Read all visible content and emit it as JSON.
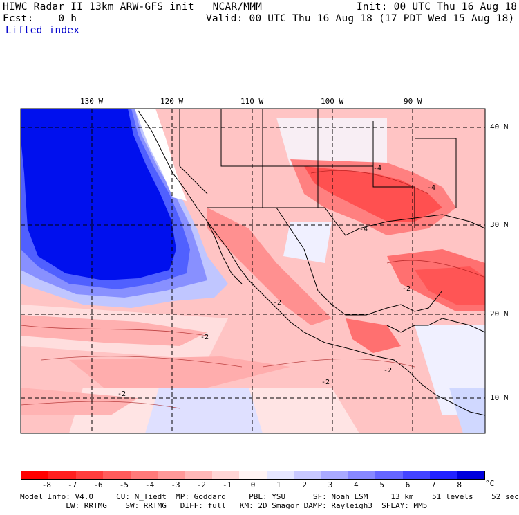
{
  "header": {
    "line1_left": "HIWC Radar II 13km ARW-GFS init   NCAR/MMM",
    "line1_right": "Init: 00 UTC Thu 16 Aug 18",
    "line2_left": "Fcst:    0 h",
    "line2_right": "Valid: 00 UTC Thu 16 Aug 18 (17 PDT Wed 15 Aug 18)",
    "field": "Lifted index"
  },
  "map": {
    "lon_labels": [
      "130 W",
      "120 W",
      "110 W",
      "100 W",
      "90 W"
    ],
    "lat_labels": [
      "40 N",
      "30 N",
      "20 N",
      "10 N"
    ],
    "contour_labels": [
      "-4",
      "-4",
      "-4",
      "-2",
      "-2",
      "-2",
      "-2",
      "-2",
      "-2"
    ],
    "colors": {
      "ocean_high": "#0000ee",
      "neutral": "#ffffff",
      "unstable": "#ff4d4d"
    }
  },
  "colorbar": {
    "ticks": [
      "-8",
      "-7",
      "-6",
      "-5",
      "-4",
      "-3",
      "-2",
      "-1",
      "0",
      "1",
      "2",
      "3",
      "4",
      "5",
      "6",
      "7",
      "8"
    ],
    "unit": "°C",
    "colors": [
      "#ff0000",
      "#ff1f1f",
      "#ff3d3d",
      "#ff5c5c",
      "#ff7a7a",
      "#ff9999",
      "#ffb8b8",
      "#ffd6d6",
      "#fff3f3",
      "#e6e6ff",
      "#c8c8ff",
      "#aaaaff",
      "#8888ff",
      "#6666ff",
      "#4444ff",
      "#2222ff",
      "#0000dd"
    ]
  },
  "footer": {
    "line1": "Model Info: V4.0     CU: N_Tiedt  MP: Goddard     PBL: YSU      SF: Noah LSM     13 km    51 levels    52 sec",
    "line2": "          LW: RRTMG    SW: RRTMG   DIFF: full   KM: 2D Smagor DAMP: Rayleigh3  SFLAY: MM5"
  }
}
